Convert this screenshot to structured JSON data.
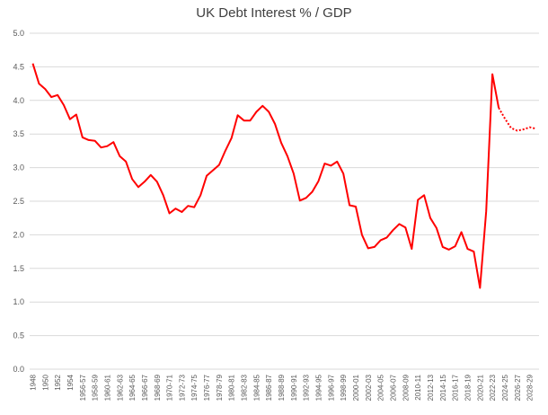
{
  "chart_data": {
    "type": "line",
    "title": "UK Debt Interest % / GDP",
    "xlabel": "",
    "ylabel": "",
    "ylim": [
      0,
      5
    ],
    "y_ticks": [
      "0.0",
      "0.5",
      "1.0",
      "1.5",
      "2.0",
      "2.5",
      "3.0",
      "3.5",
      "4.0",
      "4.5",
      "5.0"
    ],
    "grid": "horizontal",
    "legend": "none",
    "line_color": "#ff0000",
    "x_tick_labels": [
      "1948",
      "1950",
      "1952",
      "1954",
      "1956-57",
      "1958-59",
      "1960-61",
      "1962-63",
      "1964-65",
      "1966-67",
      "1968-69",
      "1970-71",
      "1972-73",
      "1974-75",
      "1976-77",
      "1978-79",
      "1980-81",
      "1982-83",
      "1984-85",
      "1986-87",
      "1988-89",
      "1990-91",
      "1992-93",
      "1994-95",
      "1996-97",
      "1998-99",
      "2000-01",
      "2002-03",
      "2004-05",
      "2006-07",
      "2008-09",
      "2010-11",
      "2012-13",
      "2014-15",
      "2016-17",
      "2018-19",
      "2020-21",
      "2022-23",
      "2024-25",
      "2026-27",
      "2028-29"
    ],
    "values": [
      4.55,
      4.25,
      4.17,
      4.05,
      4.08,
      3.93,
      3.72,
      3.79,
      3.45,
      3.41,
      3.4,
      3.3,
      3.32,
      3.38,
      3.17,
      3.09,
      2.83,
      2.71,
      2.79,
      2.89,
      2.79,
      2.59,
      2.32,
      2.39,
      2.34,
      2.43,
      2.41,
      2.59,
      2.88,
      2.96,
      3.04,
      3.25,
      3.44,
      3.78,
      3.7,
      3.7,
      3.83,
      3.92,
      3.83,
      3.65,
      3.37,
      3.17,
      2.91,
      2.51,
      2.55,
      2.64,
      2.8,
      3.06,
      3.03,
      3.09,
      2.91,
      2.44,
      2.42,
      2.0,
      1.8,
      1.82,
      1.92,
      1.96,
      2.07,
      2.16,
      2.11,
      1.79,
      2.52,
      2.59,
      2.25,
      2.1,
      1.82,
      1.78,
      1.83,
      2.04,
      1.79,
      1.75,
      1.21,
      2.35,
      4.39,
      3.89,
      3.73,
      3.59,
      3.55,
      3.57,
      3.6,
      3.58
    ],
    "projection_start_index": 75
  }
}
